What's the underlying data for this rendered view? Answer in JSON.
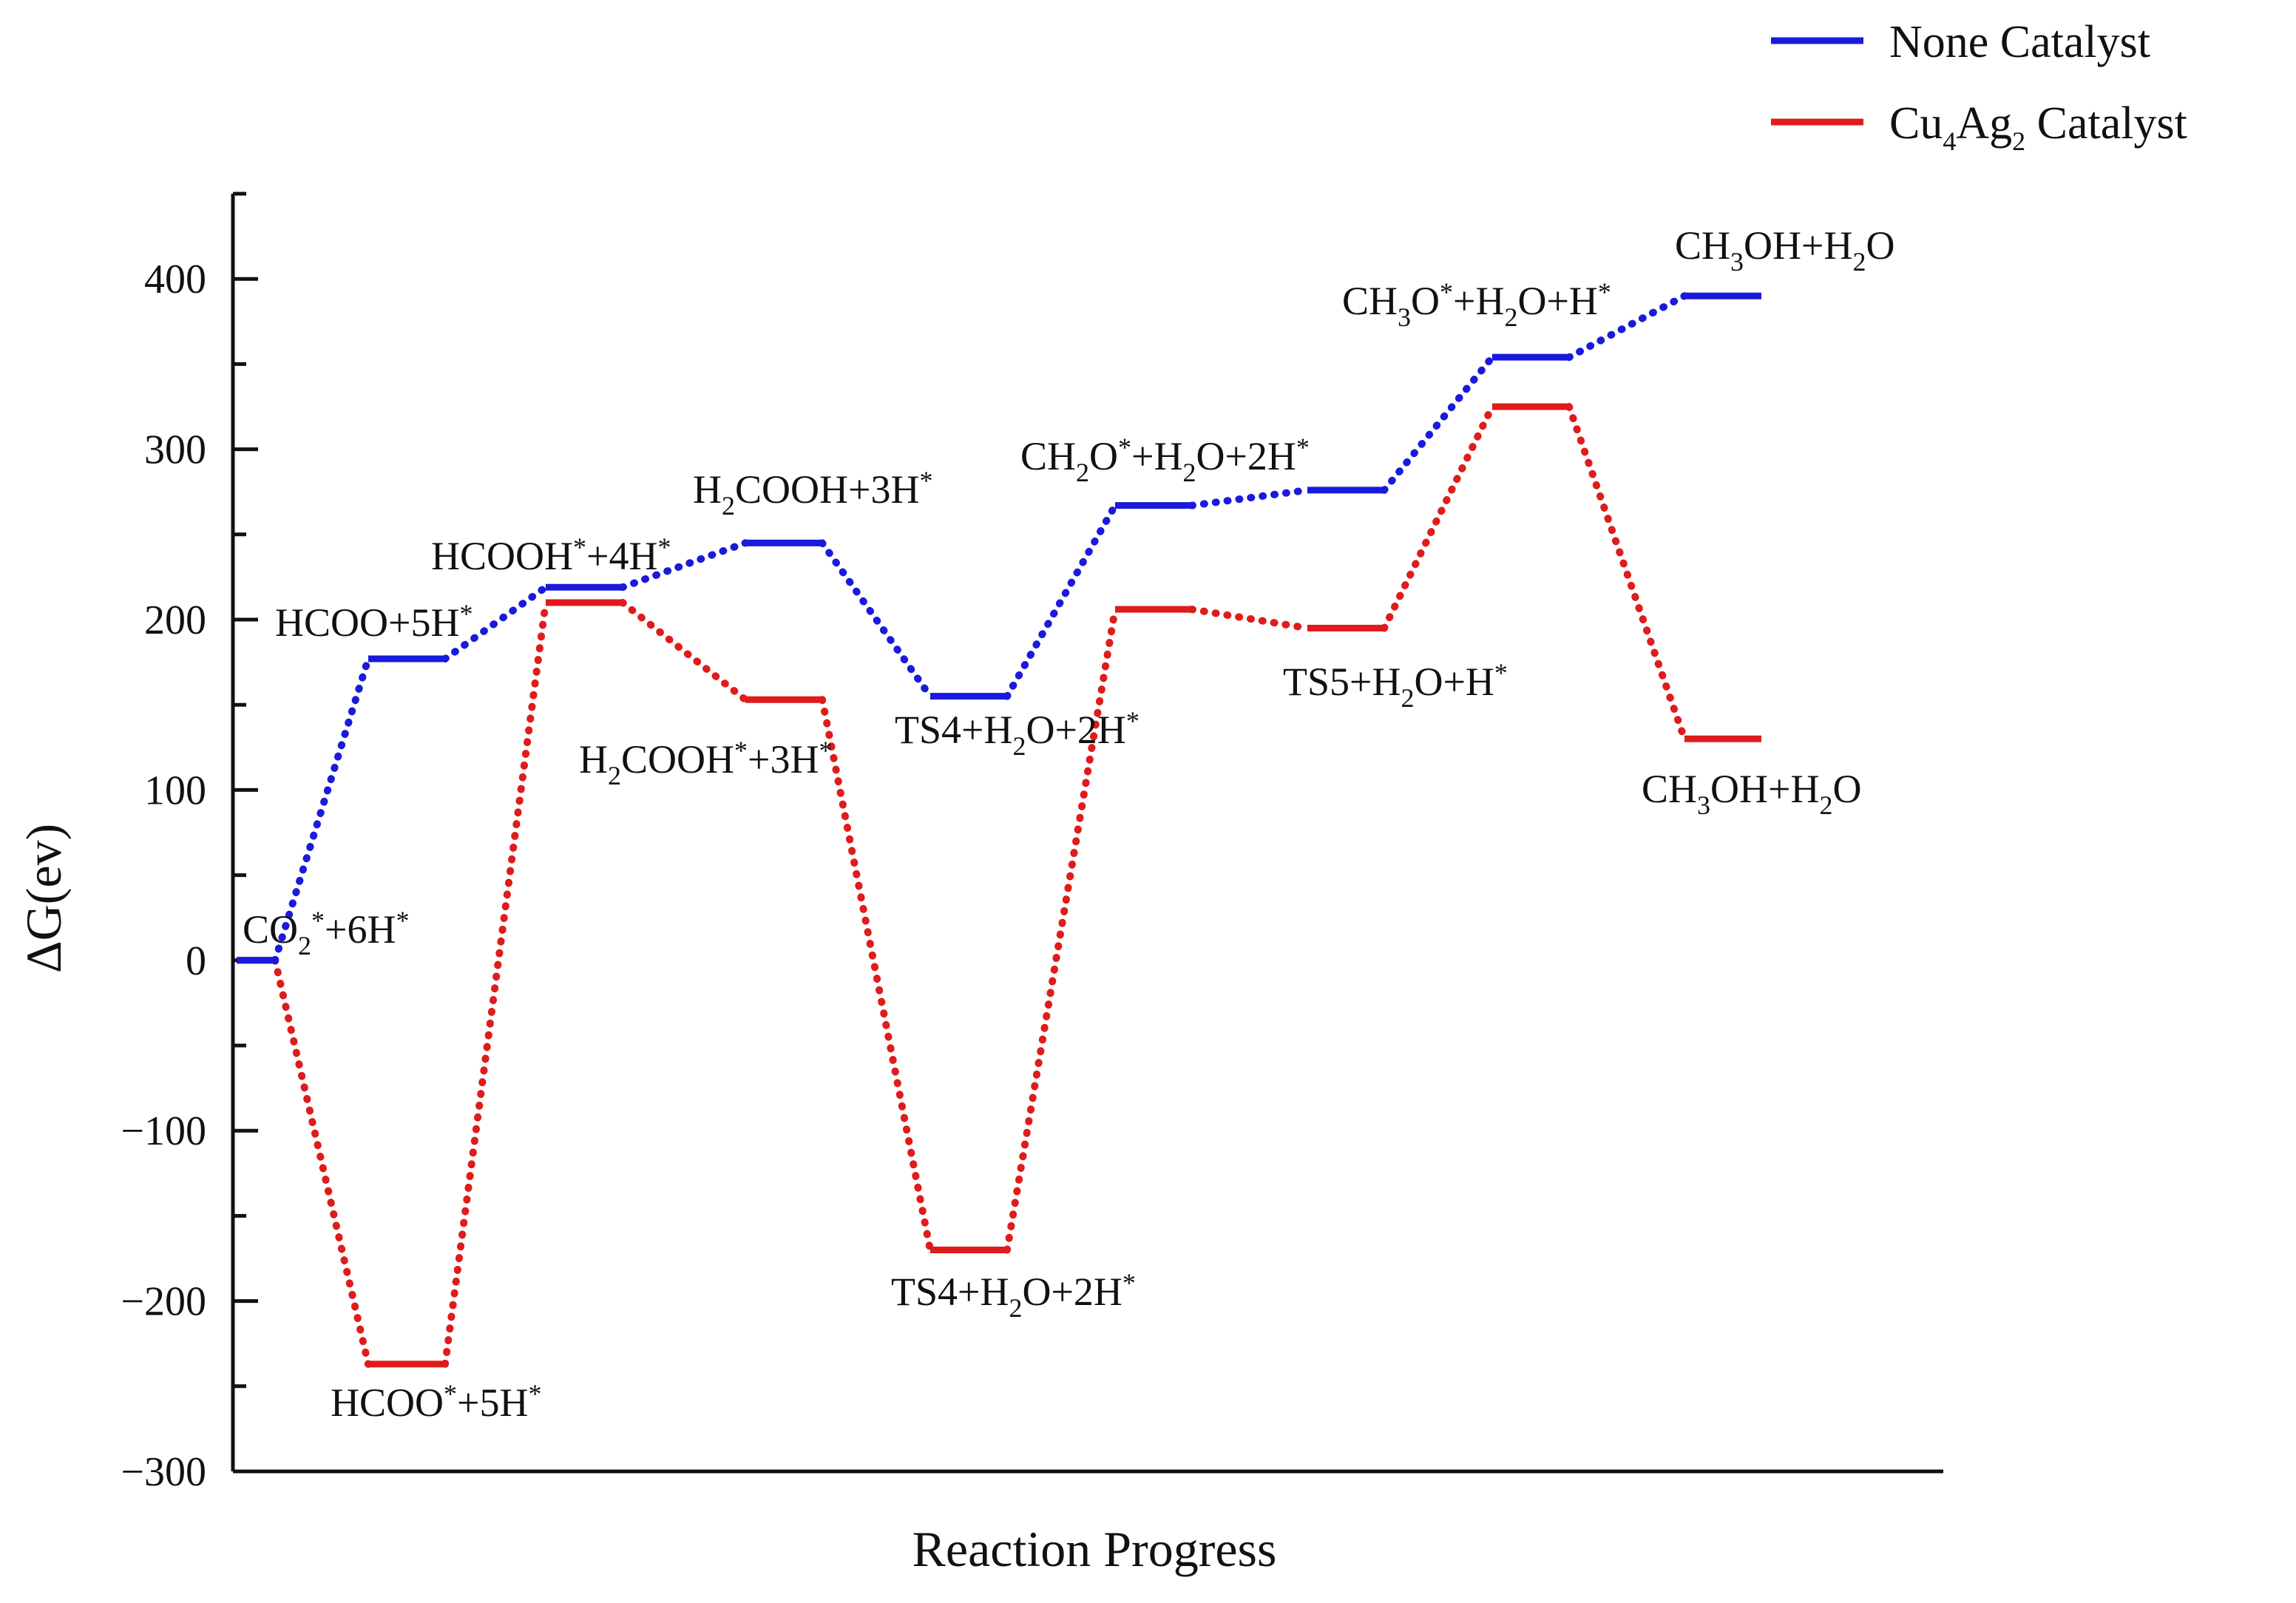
{
  "chart_data": {
    "type": "line",
    "title": "",
    "xlabel": "Reaction Progress",
    "ylabel": "ΔG(ev)",
    "ylim": [
      -300,
      450
    ],
    "yticks": [
      -300,
      -200,
      -100,
      0,
      100,
      200,
      300,
      400
    ],
    "ytick_labels": [
      "−300",
      "−200",
      "−100",
      "0",
      "100",
      "200",
      "300",
      "400"
    ],
    "grid": false,
    "legend_position": "top-right",
    "series": [
      {
        "name": "None Catalyst",
        "color": "#1a1adc",
        "states": [
          {
            "step": 1,
            "value": 0
          },
          {
            "step": 2,
            "value": 177,
            "label": "HCOO+5H*"
          },
          {
            "step": 3,
            "value": 219,
            "label": "HCOOH*+4H*"
          },
          {
            "step": 4,
            "value": 245,
            "label": "H2COOH+3H*"
          },
          {
            "step": 5,
            "value": 155,
            "label": "TS4+H2O+2H*"
          },
          {
            "step": 6,
            "value": 267,
            "label": "CH2O*+H2O+2H*"
          },
          {
            "step": 7,
            "value": 276
          },
          {
            "step": 8,
            "value": 354,
            "label": "CH3O*+H2O+H*"
          },
          {
            "step": 9,
            "value": 390,
            "label": "CH3OH+H2O"
          }
        ]
      },
      {
        "name": "Cu4Ag2 Catalyst",
        "color": "#e01b1b",
        "states": [
          {
            "step": 1,
            "value": 0,
            "label": "CO2*+6H*"
          },
          {
            "step": 2,
            "value": -237,
            "label": "HCOO*+5H*"
          },
          {
            "step": 3,
            "value": 210
          },
          {
            "step": 4,
            "value": 153,
            "label": "H2COOH*+3H*"
          },
          {
            "step": 5,
            "value": -170,
            "label": "TS4+H2O+2H*"
          },
          {
            "step": 6,
            "value": 206
          },
          {
            "step": 7,
            "value": 195,
            "label": "TS5+H2O+H*"
          },
          {
            "step": 8,
            "value": 325
          },
          {
            "step": 9,
            "value": 130,
            "label": "CH3OH+H2O"
          }
        ]
      }
    ],
    "annotations": [
      {
        "id": "co2",
        "series": "Cu4Ag2 Catalyst",
        "step": 1,
        "runs": [
          [
            "CO",
            ""
          ],
          [
            "2",
            "sub"
          ],
          [
            "*",
            "sup"
          ],
          [
            "+6H",
            ""
          ],
          [
            "*",
            "sup"
          ]
        ]
      },
      {
        "id": "hcoo-5h",
        "series": "None Catalyst",
        "step": 2,
        "runs": [
          [
            "HCOO+5H",
            ""
          ],
          [
            "*",
            "sup"
          ]
        ]
      },
      {
        "id": "hcooh-4h",
        "series": "None Catalyst",
        "step": 3,
        "runs": [
          [
            "HCOOH",
            ""
          ],
          [
            "*",
            "sup"
          ],
          [
            "+4H",
            ""
          ],
          [
            "*",
            "sup"
          ]
        ]
      },
      {
        "id": "h2cooh-3h-none",
        "series": "None Catalyst",
        "step": 4,
        "runs": [
          [
            "H",
            ""
          ],
          [
            "2",
            "sub"
          ],
          [
            "COOH+3H",
            ""
          ],
          [
            "*",
            "sup"
          ]
        ]
      },
      {
        "id": "ch2o",
        "series": "None Catalyst",
        "step": 6,
        "runs": [
          [
            "CH",
            ""
          ],
          [
            "2",
            "sub"
          ],
          [
            "O",
            ""
          ],
          [
            "*",
            "sup"
          ],
          [
            "+H",
            ""
          ],
          [
            "2",
            "sub"
          ],
          [
            "O+2H",
            ""
          ],
          [
            "*",
            "sup"
          ]
        ]
      },
      {
        "id": "ch3o",
        "series": "None Catalyst",
        "step": 8,
        "runs": [
          [
            "CH",
            ""
          ],
          [
            "3",
            "sub"
          ],
          [
            "O",
            ""
          ],
          [
            "*",
            "sup"
          ],
          [
            "+H",
            ""
          ],
          [
            "2",
            "sub"
          ],
          [
            "O+H",
            ""
          ],
          [
            "*",
            "sup"
          ]
        ]
      },
      {
        "id": "ch3oh-none",
        "series": "None Catalyst",
        "step": 9,
        "runs": [
          [
            "CH",
            ""
          ],
          [
            "3",
            "sub"
          ],
          [
            "OH+H",
            ""
          ],
          [
            "2",
            "sub"
          ],
          [
            "O",
            ""
          ]
        ]
      },
      {
        "id": "hcoo-star-5h",
        "series": "Cu4Ag2 Catalyst",
        "step": 2,
        "runs": [
          [
            "HCOO",
            ""
          ],
          [
            "*",
            "sup"
          ],
          [
            "+5H",
            ""
          ],
          [
            "*",
            "sup"
          ]
        ]
      },
      {
        "id": "h2cooh-3h-cu",
        "series": "Cu4Ag2 Catalyst",
        "step": 4,
        "runs": [
          [
            "H",
            ""
          ],
          [
            "2",
            "sub"
          ],
          [
            "COOH",
            ""
          ],
          [
            "*",
            "sup"
          ],
          [
            "+3H",
            ""
          ],
          [
            "*",
            "sup"
          ]
        ]
      },
      {
        "id": "ts4-none",
        "series": "None Catalyst",
        "step": 5,
        "runs": [
          [
            "TS4+H",
            ""
          ],
          [
            "2",
            "sub"
          ],
          [
            "O+2H",
            ""
          ],
          [
            "*",
            "sup"
          ]
        ]
      },
      {
        "id": "ts4-cu",
        "series": "Cu4Ag2 Catalyst",
        "step": 5,
        "runs": [
          [
            "TS4+H",
            ""
          ],
          [
            "2",
            "sub"
          ],
          [
            "O+2H",
            ""
          ],
          [
            "*",
            "sup"
          ]
        ]
      },
      {
        "id": "ts5",
        "series": "Cu4Ag2 Catalyst",
        "step": 7,
        "runs": [
          [
            "TS5+H",
            ""
          ],
          [
            "2",
            "sub"
          ],
          [
            "O+H",
            ""
          ],
          [
            "*",
            "sup"
          ]
        ]
      },
      {
        "id": "ch3oh-cu",
        "series": "Cu4Ag2 Catalyst",
        "step": 9,
        "runs": [
          [
            "CH",
            ""
          ],
          [
            "3",
            "sub"
          ],
          [
            "OH+H",
            ""
          ],
          [
            "2",
            "sub"
          ],
          [
            "O",
            ""
          ]
        ]
      }
    ],
    "legend": [
      {
        "series": "None Catalyst",
        "runs": [
          [
            "None Catalyst",
            ""
          ]
        ]
      },
      {
        "series": "Cu4Ag2 Catalyst",
        "runs": [
          [
            "Cu",
            ""
          ],
          [
            "4",
            "sub"
          ],
          [
            "Ag",
            ""
          ],
          [
            "2",
            "sub"
          ],
          [
            " Catalyst",
            ""
          ]
        ]
      }
    ]
  }
}
